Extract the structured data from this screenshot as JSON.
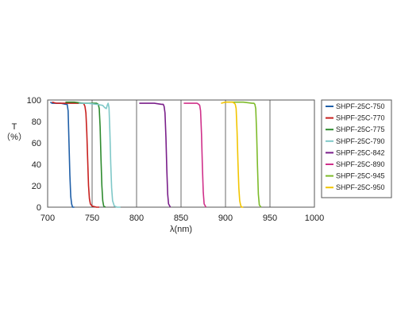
{
  "chart_data": {
    "type": "line",
    "ylabel": "T",
    "yunit": "（%）",
    "xlabel": "λ(nm)",
    "xlim": [
      700,
      1000
    ],
    "ylim": [
      0,
      100
    ],
    "xticks": [
      700,
      750,
      800,
      850,
      900,
      950,
      1000
    ],
    "yticks": [
      0,
      20,
      40,
      60,
      80,
      100
    ],
    "grid": "vertical",
    "legend_position": "right",
    "series": [
      {
        "name": "SHPF-25C-750",
        "color": "#1f5fa8",
        "x": [
          703,
          705,
          710,
          715,
          720,
          722,
          723,
          724,
          725,
          726,
          727,
          728,
          730
        ],
        "y": [
          98,
          97,
          97,
          97,
          96,
          96,
          90,
          60,
          30,
          10,
          3,
          0,
          0
        ]
      },
      {
        "name": "SHPF-25C-770",
        "color": "#c8201e",
        "x": [
          705,
          710,
          720,
          730,
          735,
          740,
          741,
          742,
          743,
          744,
          745,
          746,
          747,
          748,
          750,
          755,
          758
        ],
        "y": [
          98,
          97,
          97,
          97,
          97,
          97,
          96,
          94,
          88,
          70,
          45,
          20,
          8,
          3,
          1,
          0,
          0
        ]
      },
      {
        "name": "SHPF-25C-775",
        "color": "#2e8b2e",
        "x": [
          720,
          730,
          740,
          750,
          755,
          757,
          758,
          759,
          760,
          761,
          762,
          763,
          765
        ],
        "y": [
          98,
          98,
          97,
          97,
          97,
          96,
          92,
          75,
          45,
          20,
          6,
          1,
          0
        ]
      },
      {
        "name": "SHPF-25C-790",
        "color": "#7fc8c8",
        "x": [
          735,
          745,
          755,
          762,
          764,
          766,
          767,
          768,
          769,
          770,
          771,
          772,
          773,
          775,
          778,
          782
        ],
        "y": [
          97,
          97,
          96,
          95,
          93,
          92,
          95,
          97,
          93,
          70,
          40,
          18,
          6,
          1,
          0,
          0
        ]
      },
      {
        "name": "SHPF-25C-842",
        "color": "#7a1f8a",
        "x": [
          803,
          810,
          820,
          828,
          830,
          831,
          832,
          833,
          834,
          835,
          836,
          838
        ],
        "y": [
          97,
          97,
          97,
          96,
          96,
          94,
          88,
          65,
          35,
          12,
          3,
          0
        ]
      },
      {
        "name": "SHPF-25C-890",
        "color": "#d0308a",
        "x": [
          853,
          860,
          868,
          870,
          871,
          872,
          873,
          874,
          875,
          876,
          878
        ],
        "y": [
          97,
          97,
          97,
          96,
          95,
          90,
          68,
          38,
          14,
          3,
          0
        ]
      },
      {
        "name": "SHPF-25C-945",
        "color": "#7dbb2a",
        "x": [
          900,
          910,
          920,
          930,
          932,
          933,
          934,
          935,
          936,
          937,
          938,
          940
        ],
        "y": [
          98,
          98,
          98,
          97,
          97,
          96,
          92,
          70,
          38,
          12,
          2,
          0
        ]
      },
      {
        "name": "SHPF-25C-950",
        "color": "#f2c500",
        "x": [
          895,
          900,
          905,
          908,
          910,
          911,
          912,
          913,
          914,
          915,
          916,
          917,
          918,
          920
        ],
        "y": [
          97,
          98,
          98,
          98,
          97,
          96,
          92,
          70,
          42,
          18,
          6,
          2,
          0,
          0
        ]
      }
    ]
  }
}
